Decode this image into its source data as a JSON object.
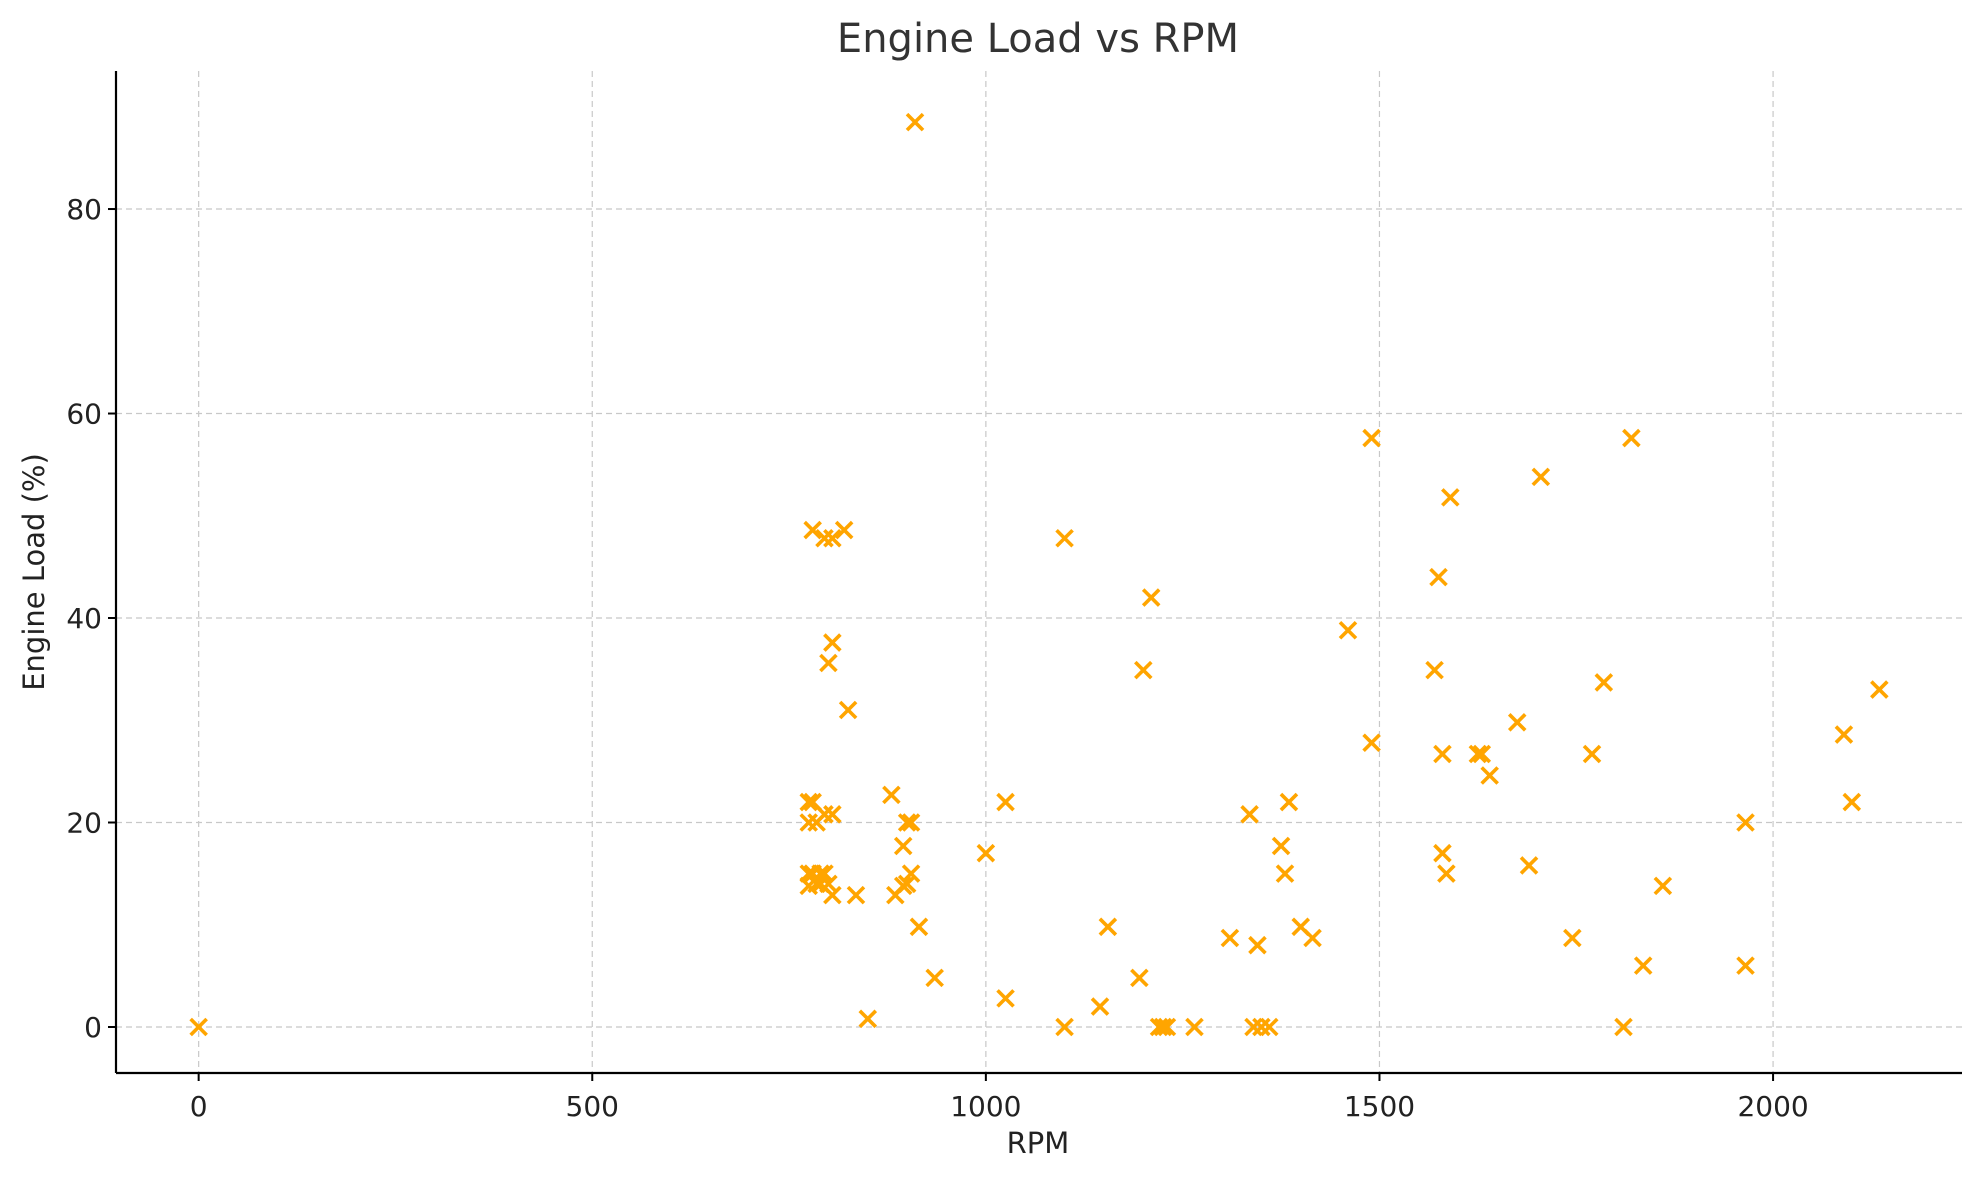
{
  "chart_data": {
    "type": "scatter",
    "title": "Engine Load vs RPM",
    "xlabel": "RPM",
    "ylabel": "Engine Load (%)",
    "xlim": [
      -105,
      2240
    ],
    "ylim": [
      -4.5,
      93.5
    ],
    "xticks": [
      0,
      500,
      1000,
      1500,
      2000
    ],
    "yticks": [
      0,
      20,
      40,
      60,
      80
    ],
    "grid": true,
    "legend": "none",
    "marker": "x",
    "color": "#FFA500",
    "series": [
      {
        "x": [
          0,
          850,
          910,
          1100,
          1145,
          1195,
          1220,
          1225,
          1230,
          1265,
          1340,
          1350,
          1360,
          1810,
          1025,
          935,
          1835,
          1965,
          1345,
          1310,
          1415,
          1745,
          915,
          1400,
          1155,
          835,
          805,
          885,
          895,
          775,
          785,
          790,
          800,
          900,
          1860,
          775,
          780,
          790,
          795,
          1380,
          1585,
          905,
          1690,
          1580,
          1000,
          895,
          1375,
          775,
          785,
          795,
          805,
          905,
          900,
          1335,
          1965,
          775,
          780,
          1025,
          1385,
          2100,
          880,
          1640,
          1625,
          1630,
          1580,
          1770,
          1490,
          2090,
          1675,
          825,
          2135,
          1785,
          1200,
          1570,
          800,
          805,
          1460,
          1210,
          1575,
          795,
          805,
          1100,
          780,
          820,
          1590,
          1705,
          1490,
          1820
        ],
        "y": [
          0,
          0.8,
          88.5,
          0,
          2,
          4.8,
          0,
          0,
          0,
          0,
          0,
          0,
          0,
          0,
          2.8,
          4.8,
          6,
          6,
          8,
          8.7,
          8.7,
          8.7,
          9.8,
          9.8,
          9.8,
          12.9,
          12.9,
          12.9,
          13.8,
          13.8,
          14,
          14,
          14,
          14,
          13.8,
          15,
          15,
          15,
          15,
          15,
          15,
          15,
          15.8,
          17,
          17,
          17.7,
          17.7,
          20,
          20,
          20.8,
          20.8,
          20,
          20,
          20.8,
          20,
          22,
          22,
          22,
          22,
          22,
          22.7,
          24.6,
          26.7,
          26.7,
          26.7,
          26.7,
          27.8,
          28.6,
          29.8,
          31,
          33,
          33.7,
          34.9,
          34.9,
          35.6,
          37.6,
          38.8,
          42,
          44,
          47.8,
          47.8,
          47.8,
          48.6,
          48.6,
          51.8,
          53.8,
          57.6,
          57.6
        ]
      }
    ]
  }
}
